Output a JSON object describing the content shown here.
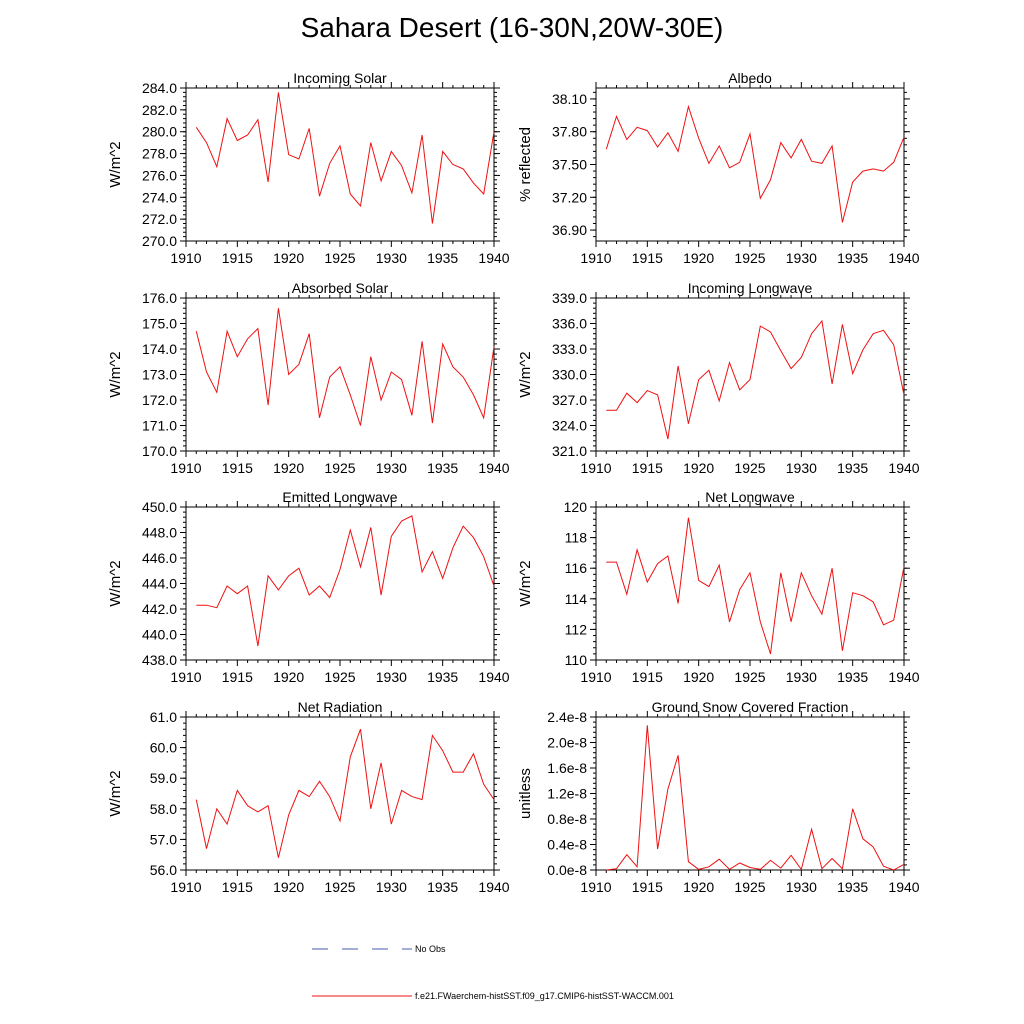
{
  "title": "Sahara Desert (16-30N,20W-30E)",
  "legend": {
    "entries": [
      {
        "label": "No Obs",
        "color": "#4a5bb0",
        "style": "dashed"
      },
      {
        "label": "f.e21.FWaerchem-histSST.f09_g17.CMIP6-histSST-WACCM.001",
        "color": "#ee1111",
        "style": "solid"
      }
    ]
  },
  "chart_data": [
    {
      "type": "line",
      "title": "Incoming Solar",
      "ylabel": "W/m^2",
      "xlim": [
        1910,
        1940
      ],
      "ylim": [
        270.0,
        284.0
      ],
      "yticks": [
        "270.0",
        "272.0",
        "274.0",
        "276.0",
        "278.0",
        "280.0",
        "282.0",
        "284.0"
      ],
      "ytick_values": [
        270,
        272,
        274,
        276,
        278,
        280,
        282,
        284
      ],
      "xticks": [
        "1910",
        "1915",
        "1920",
        "1925",
        "1930",
        "1935",
        "1940"
      ],
      "x": [
        1911,
        1912,
        1913,
        1914,
        1915,
        1916,
        1917,
        1918,
        1919,
        1920,
        1921,
        1922,
        1923,
        1924,
        1925,
        1926,
        1927,
        1928,
        1929,
        1930,
        1931,
        1932,
        1933,
        1934,
        1935,
        1936,
        1937,
        1938,
        1939,
        1940
      ],
      "series": [
        {
          "values": [
            280.4,
            279.0,
            276.8,
            281.2,
            279.2,
            279.7,
            281.1,
            275.4,
            283.6,
            277.9,
            277.5,
            280.3,
            274.1,
            277.1,
            278.7,
            274.3,
            273.2,
            279.0,
            275.5,
            278.2,
            276.9,
            274.4,
            279.7,
            271.6,
            278.2,
            277.0,
            276.6,
            275.3,
            274.3,
            280.0
          ],
          "color": "#ee1111"
        }
      ]
    },
    {
      "type": "line",
      "title": "Albedo",
      "ylabel": "% reflected",
      "xlim": [
        1910,
        1940
      ],
      "ylim": [
        36.8,
        38.2
      ],
      "yticks": [
        "36.90",
        "37.20",
        "37.50",
        "37.80",
        "38.10"
      ],
      "ytick_values": [
        36.9,
        37.2,
        37.5,
        37.8,
        38.1
      ],
      "xticks": [
        "1910",
        "1915",
        "1920",
        "1925",
        "1930",
        "1935",
        "1940"
      ],
      "x": [
        1911,
        1912,
        1913,
        1914,
        1915,
        1916,
        1917,
        1918,
        1919,
        1920,
        1921,
        1922,
        1923,
        1924,
        1925,
        1926,
        1927,
        1928,
        1929,
        1930,
        1931,
        1932,
        1933,
        1934,
        1935,
        1936,
        1937,
        1938,
        1939,
        1940
      ],
      "series": [
        {
          "values": [
            37.64,
            37.94,
            37.73,
            37.84,
            37.81,
            37.66,
            37.79,
            37.62,
            38.03,
            37.74,
            37.51,
            37.67,
            37.47,
            37.52,
            37.78,
            37.19,
            37.36,
            37.7,
            37.56,
            37.73,
            37.53,
            37.51,
            37.67,
            36.97,
            37.34,
            37.44,
            37.46,
            37.44,
            37.52,
            37.75
          ],
          "color": "#ee1111"
        }
      ]
    },
    {
      "type": "line",
      "title": "Absorbed Solar",
      "ylabel": "W/m^2",
      "xlim": [
        1910,
        1940
      ],
      "ylim": [
        170.0,
        176.0
      ],
      "yticks": [
        "170.0",
        "171.0",
        "172.0",
        "173.0",
        "174.0",
        "175.0",
        "176.0"
      ],
      "ytick_values": [
        170,
        171,
        172,
        173,
        174,
        175,
        176
      ],
      "xticks": [
        "1910",
        "1915",
        "1920",
        "1925",
        "1930",
        "1935",
        "1940"
      ],
      "x": [
        1911,
        1912,
        1913,
        1914,
        1915,
        1916,
        1917,
        1918,
        1919,
        1920,
        1921,
        1922,
        1923,
        1924,
        1925,
        1926,
        1927,
        1928,
        1929,
        1930,
        1931,
        1932,
        1933,
        1934,
        1935,
        1936,
        1937,
        1938,
        1939,
        1940
      ],
      "series": [
        {
          "values": [
            174.7,
            173.1,
            172.3,
            174.7,
            173.7,
            174.4,
            174.8,
            171.8,
            175.6,
            173.0,
            173.4,
            174.6,
            171.3,
            172.9,
            173.3,
            172.2,
            171.0,
            173.7,
            172.0,
            173.1,
            172.8,
            171.4,
            174.3,
            171.1,
            174.2,
            173.3,
            172.9,
            172.2,
            171.3,
            174.1
          ],
          "color": "#ee1111"
        }
      ]
    },
    {
      "type": "line",
      "title": "Incoming Longwave",
      "ylabel": "W/m^2",
      "xlim": [
        1910,
        1940
      ],
      "ylim": [
        321.0,
        339.0
      ],
      "yticks": [
        "321.0",
        "324.0",
        "327.0",
        "330.0",
        "333.0",
        "336.0",
        "339.0"
      ],
      "ytick_values": [
        321,
        324,
        327,
        330,
        333,
        336,
        339
      ],
      "xticks": [
        "1910",
        "1915",
        "1920",
        "1925",
        "1930",
        "1935",
        "1940"
      ],
      "x": [
        1911,
        1912,
        1913,
        1914,
        1915,
        1916,
        1917,
        1918,
        1919,
        1920,
        1921,
        1922,
        1923,
        1924,
        1925,
        1926,
        1927,
        1928,
        1929,
        1930,
        1931,
        1932,
        1933,
        1934,
        1935,
        1936,
        1937,
        1938,
        1939,
        1940
      ],
      "series": [
        {
          "values": [
            325.8,
            325.8,
            327.8,
            326.7,
            328.1,
            327.6,
            322.4,
            331.0,
            324.2,
            329.4,
            330.5,
            326.9,
            331.4,
            328.2,
            329.4,
            335.7,
            335.0,
            332.8,
            330.7,
            332.0,
            334.8,
            336.3,
            328.9,
            335.9,
            330.1,
            332.9,
            334.8,
            335.2,
            333.5,
            327.6
          ],
          "color": "#ee1111"
        }
      ]
    },
    {
      "type": "line",
      "title": "Emitted Longwave",
      "ylabel": "W/m^2",
      "xlim": [
        1910,
        1940
      ],
      "ylim": [
        438.0,
        450.0
      ],
      "yticks": [
        "438.0",
        "440.0",
        "442.0",
        "444.0",
        "446.0",
        "448.0",
        "450.0"
      ],
      "ytick_values": [
        438,
        440,
        442,
        444,
        446,
        448,
        450
      ],
      "xticks": [
        "1910",
        "1915",
        "1920",
        "1925",
        "1930",
        "1935",
        "1940"
      ],
      "x": [
        1911,
        1912,
        1913,
        1914,
        1915,
        1916,
        1917,
        1918,
        1919,
        1920,
        1921,
        1922,
        1923,
        1924,
        1925,
        1926,
        1927,
        1928,
        1929,
        1930,
        1931,
        1932,
        1933,
        1934,
        1935,
        1936,
        1937,
        1938,
        1939,
        1940
      ],
      "series": [
        {
          "values": [
            442.3,
            442.3,
            442.1,
            443.8,
            443.2,
            443.8,
            439.1,
            444.6,
            443.5,
            444.6,
            445.2,
            443.1,
            443.8,
            442.9,
            445.1,
            448.2,
            445.3,
            448.4,
            443.1,
            447.7,
            448.9,
            449.3,
            444.9,
            446.5,
            444.4,
            446.8,
            448.5,
            447.6,
            446.1,
            443.8
          ],
          "color": "#ee1111"
        }
      ]
    },
    {
      "type": "line",
      "title": "Net Longwave",
      "ylabel": "W/m^2",
      "xlim": [
        1910,
        1940
      ],
      "ylim": [
        110,
        120
      ],
      "yticks": [
        "110",
        "112",
        "114",
        "116",
        "118",
        "120"
      ],
      "ytick_values": [
        110,
        112,
        114,
        116,
        118,
        120
      ],
      "xticks": [
        "1910",
        "1915",
        "1920",
        "1925",
        "1930",
        "1935",
        "1940"
      ],
      "x": [
        1911,
        1912,
        1913,
        1914,
        1915,
        1916,
        1917,
        1918,
        1919,
        1920,
        1921,
        1922,
        1923,
        1924,
        1925,
        1926,
        1927,
        1928,
        1929,
        1930,
        1931,
        1932,
        1933,
        1934,
        1935,
        1936,
        1937,
        1938,
        1939,
        1940
      ],
      "series": [
        {
          "values": [
            116.4,
            116.4,
            114.3,
            117.2,
            115.1,
            116.3,
            116.8,
            113.7,
            119.3,
            115.2,
            114.8,
            116.2,
            112.5,
            114.6,
            115.7,
            112.5,
            110.4,
            115.7,
            112.5,
            115.7,
            114.2,
            113.0,
            116.0,
            110.6,
            114.4,
            114.2,
            113.8,
            112.3,
            112.6,
            116.1
          ],
          "color": "#ee1111"
        }
      ]
    },
    {
      "type": "line",
      "title": "Net Radiation",
      "ylabel": "W/m^2",
      "xlim": [
        1910,
        1940
      ],
      "ylim": [
        56.0,
        61.0
      ],
      "yticks": [
        "56.0",
        "57.0",
        "58.0",
        "59.0",
        "60.0",
        "61.0"
      ],
      "ytick_values": [
        56,
        57,
        58,
        59,
        60,
        61
      ],
      "xticks": [
        "1910",
        "1915",
        "1920",
        "1925",
        "1930",
        "1935",
        "1940"
      ],
      "x": [
        1911,
        1912,
        1913,
        1914,
        1915,
        1916,
        1917,
        1918,
        1919,
        1920,
        1921,
        1922,
        1923,
        1924,
        1925,
        1926,
        1927,
        1928,
        1929,
        1930,
        1931,
        1932,
        1933,
        1934,
        1935,
        1936,
        1937,
        1938,
        1939,
        1940
      ],
      "series": [
        {
          "values": [
            58.3,
            56.7,
            58.0,
            57.5,
            58.6,
            58.1,
            57.9,
            58.1,
            56.4,
            57.8,
            58.6,
            58.4,
            58.9,
            58.4,
            57.6,
            59.7,
            60.6,
            58.0,
            59.5,
            57.5,
            58.6,
            58.4,
            58.3,
            60.4,
            59.9,
            59.2,
            59.2,
            59.8,
            58.8,
            58.3
          ],
          "color": "#ee1111"
        }
      ]
    },
    {
      "type": "line",
      "title": "Ground Snow Covered Fraction",
      "ylabel": "unitless",
      "xlim": [
        1910,
        1940
      ],
      "ylim": [
        0.0,
        2.4e-08
      ],
      "yticks": [
        "0.0e-8",
        "0.4e-8",
        "0.8e-8",
        "1.2e-8",
        "1.6e-8",
        "2.0e-8",
        "2.4e-8"
      ],
      "ytick_values": [
        0,
        4e-09,
        8e-09,
        1.2e-08,
        1.6e-08,
        2e-08,
        2.4e-08
      ],
      "xticks": [
        "1910",
        "1915",
        "1920",
        "1925",
        "1930",
        "1935",
        "1940"
      ],
      "x": [
        1911,
        1912,
        1913,
        1914,
        1915,
        1916,
        1917,
        1918,
        1919,
        1920,
        1921,
        1922,
        1923,
        1924,
        1925,
        1926,
        1927,
        1928,
        1929,
        1930,
        1931,
        1932,
        1933,
        1934,
        1935,
        1936,
        1937,
        1938,
        1939,
        1940
      ],
      "series": [
        {
          "values": [
            0,
            2e-10,
            2.4e-09,
            5e-10,
            2.27e-08,
            3.3e-09,
            1.27e-08,
            1.8e-08,
            1.3e-09,
            1e-10,
            5e-10,
            1.7e-09,
            1e-10,
            1.1e-09,
            4e-10,
            1e-10,
            1.5e-09,
            3e-10,
            2.3e-09,
            1e-10,
            6.4e-09,
            2e-10,
            1.8e-09,
            2e-10,
            9.6e-09,
            4.9e-09,
            3.6e-09,
            6e-10,
            0,
            9e-10
          ],
          "color": "#ee1111"
        }
      ]
    }
  ]
}
